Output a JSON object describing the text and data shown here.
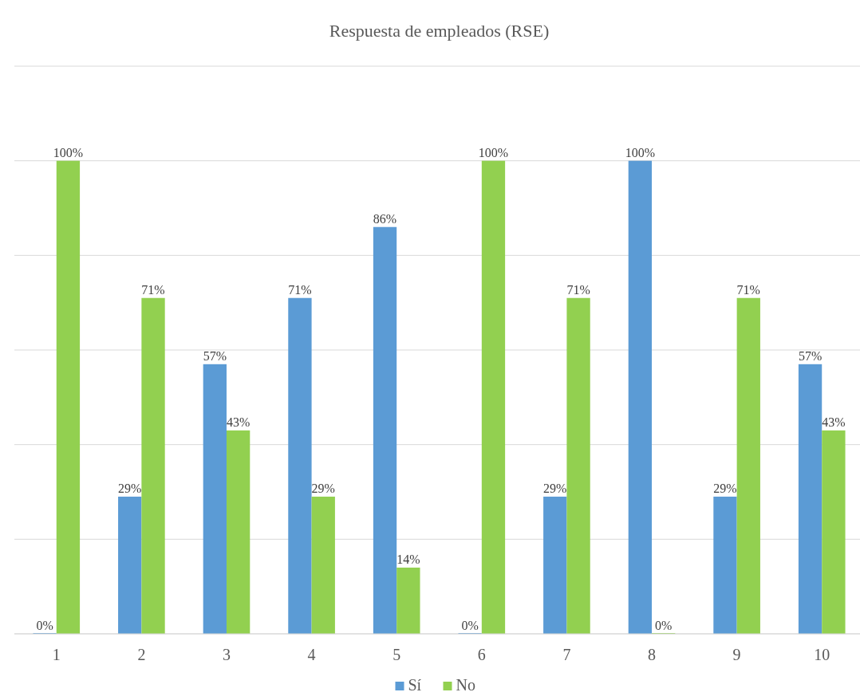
{
  "chart_data": {
    "type": "bar",
    "title": "Respuesta de empleados (RSE)",
    "categories": [
      "1",
      "2",
      "3",
      "4",
      "5",
      "6",
      "7",
      "8",
      "9",
      "10"
    ],
    "series": [
      {
        "name": "Sí",
        "color": "#5b9bd5",
        "values": [
          0,
          29,
          57,
          71,
          86,
          0,
          29,
          100,
          29,
          57
        ],
        "value_labels": [
          "0%",
          "29%",
          "57%",
          "71%",
          "86%",
          "0%",
          "29%",
          "100%",
          "29%",
          "57%"
        ]
      },
      {
        "name": "No",
        "color": "#92d050",
        "values": [
          100,
          71,
          43,
          29,
          14,
          100,
          71,
          0,
          71,
          43
        ],
        "value_labels": [
          "100%",
          "71%",
          "43%",
          "29%",
          "14%",
          "100%",
          "71%",
          "0%",
          "71%",
          "43%"
        ]
      }
    ],
    "ylim": [
      0,
      120
    ],
    "yticks": [
      {
        "value": 0,
        "label": null
      },
      {
        "value": 20,
        "label": null
      },
      {
        "value": 40,
        "label": null
      },
      {
        "value": 60,
        "label": null
      },
      {
        "value": 80,
        "label": null
      },
      {
        "value": 100,
        "label": null
      },
      {
        "value": 120,
        "label": null
      }
    ],
    "grid": "y",
    "legend": "bottom",
    "tick_labels": "x"
  }
}
